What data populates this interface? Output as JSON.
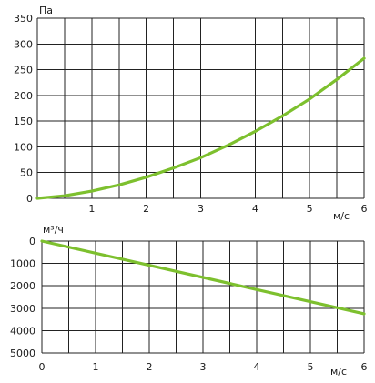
{
  "chart_data": [
    {
      "type": "line",
      "xlabel": "м/с",
      "ylabel": "Па",
      "xlim": [
        0,
        6
      ],
      "ylim": [
        0,
        350
      ],
      "grid": true,
      "x_ticks": [
        "1",
        "2",
        "3",
        "4",
        "5",
        "6"
      ],
      "y_ticks": [
        "0",
        "50",
        "100",
        "150",
        "200",
        "250",
        "300",
        "350"
      ],
      "line_color": "#7dc02e",
      "series": [
        {
          "x": [
            0,
            0.5,
            1,
            1.5,
            2,
            2.5,
            3,
            3.5,
            4,
            4.5,
            5,
            5.5,
            6
          ],
          "y": [
            0,
            5,
            14,
            26,
            41,
            59,
            79,
            103,
            130,
            160,
            193,
            231,
            272
          ]
        }
      ]
    },
    {
      "type": "line",
      "xlabel": "м/с",
      "ylabel": "м³/ч",
      "xlim": [
        0,
        6
      ],
      "ylim": [
        0,
        5000
      ],
      "y_inverted": true,
      "grid": true,
      "x_ticks": [
        "0",
        "1",
        "2",
        "3",
        "4",
        "5",
        "6"
      ],
      "y_ticks": [
        "0",
        "1000",
        "2000",
        "3000",
        "4000",
        "5000"
      ],
      "line_color": "#7dc02e",
      "series": [
        {
          "x": [
            0,
            6
          ],
          "y": [
            0,
            3250
          ]
        }
      ]
    }
  ]
}
